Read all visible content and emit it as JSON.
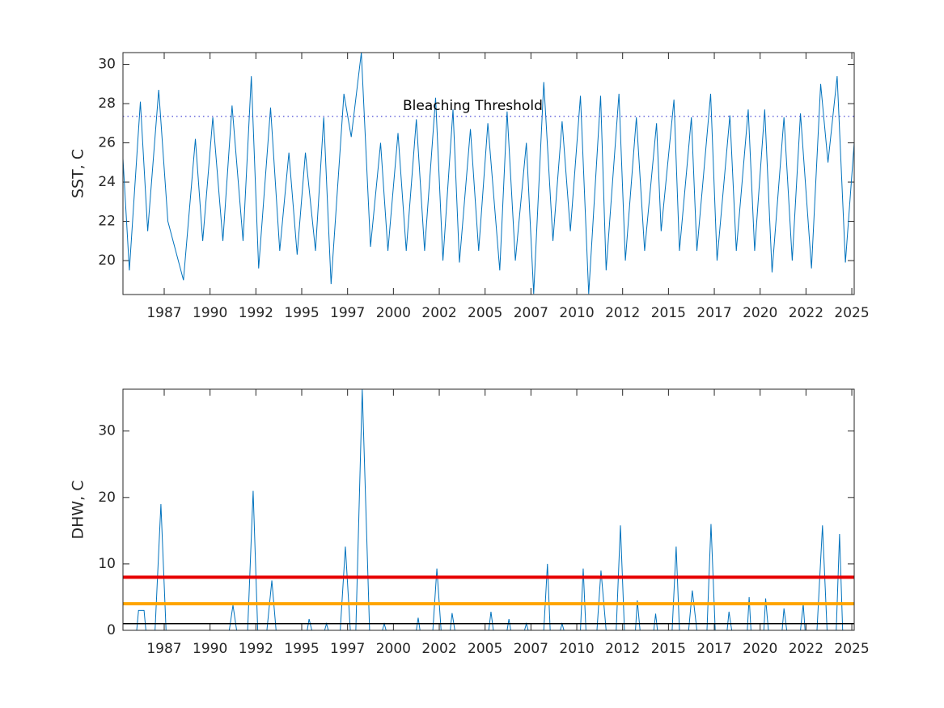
{
  "chart_data": [
    {
      "type": "line",
      "ylabel": "SST, C",
      "color": "#0072bd",
      "xlim": [
        1985.25,
        2025.13
      ],
      "ylim": [
        18.27,
        30.6
      ],
      "xticks": [
        {
          "value": 1987.5,
          "label": "1987"
        },
        1990,
        {
          "value": 1992.5,
          "label": "1992"
        },
        1995,
        {
          "value": 1997.5,
          "label": "1997"
        },
        2000,
        {
          "value": 2002.5,
          "label": "2002"
        },
        2005,
        {
          "value": 2007.5,
          "label": "2007"
        },
        2010,
        {
          "value": 2012.5,
          "label": "2012"
        },
        2015,
        {
          "value": 2017.5,
          "label": "2017"
        },
        2020,
        {
          "value": 2022.5,
          "label": "2022"
        },
        2025
      ],
      "yticks": [
        20,
        22,
        24,
        26,
        28,
        30
      ],
      "threshold": 27.35,
      "threshold_color": "#3a3ad0",
      "threshold_label": "Bleaching Threshold",
      "x": [
        1985.25,
        1985.6,
        1986.2,
        1986.6,
        1987.2,
        1987.7,
        1988.55,
        1989.2,
        1989.6,
        1990.15,
        1990.7,
        1991.2,
        1991.8,
        1992.25,
        1992.65,
        1993.3,
        1993.8,
        1994.3,
        1994.75,
        1995.2,
        1995.75,
        1996.2,
        1996.6,
        1997.3,
        1997.7,
        1998.25,
        1998.75,
        1999.3,
        1999.7,
        2000.25,
        2000.7,
        2001.25,
        2001.7,
        2002.3,
        2002.7,
        2003.25,
        2003.6,
        2004.2,
        2004.65,
        2005.15,
        2005.8,
        2006.2,
        2006.65,
        2007.25,
        2007.65,
        2008.2,
        2008.7,
        2009.2,
        2009.65,
        2010.2,
        2010.65,
        2011.3,
        2011.6,
        2012.3,
        2012.65,
        2013.25,
        2013.7,
        2014.35,
        2014.6,
        2015.3,
        2015.6,
        2016.25,
        2016.55,
        2017.3,
        2017.65,
        2018.35,
        2018.7,
        2019.35,
        2019.7,
        2020.25,
        2020.65,
        2021.3,
        2021.75,
        2022.2,
        2022.8,
        2023.3,
        2023.7,
        2024.2,
        2024.65,
        2025.13
      ],
      "values": [
        25.2,
        19.5,
        28.1,
        21.5,
        28.7,
        22,
        19,
        26.2,
        21,
        27.3,
        21,
        27.9,
        21,
        29.4,
        19.6,
        27.8,
        20.5,
        25.5,
        20.3,
        25.5,
        20.5,
        27.3,
        18.8,
        28.5,
        26.3,
        30.6,
        20.7,
        26,
        20.5,
        26.5,
        20.5,
        27.2,
        20.5,
        28.3,
        20,
        27.7,
        19.9,
        26.7,
        20.5,
        27,
        19.5,
        27.6,
        20,
        26,
        18.3,
        29.1,
        21,
        27.1,
        21.5,
        28.4,
        18.3,
        28.4,
        19.5,
        28.5,
        20,
        27.3,
        20.5,
        27,
        21.5,
        28.2,
        20.5,
        27.3,
        20.5,
        28.5,
        20,
        27.4,
        20.5,
        27.7,
        20.5,
        27.7,
        19.4,
        27.3,
        20,
        27.5,
        19.6,
        29,
        25,
        29.4,
        19.9,
        26
      ]
    },
    {
      "type": "line",
      "ylabel": "DHW, C",
      "color": "#0072bd",
      "xlim": [
        1985.25,
        2025.13
      ],
      "ylim": [
        0,
        36.3
      ],
      "xticks": [
        {
          "value": 1987.5,
          "label": "1987"
        },
        1990,
        {
          "value": 1992.5,
          "label": "1992"
        },
        1995,
        {
          "value": 1997.5,
          "label": "1997"
        },
        2000,
        {
          "value": 2002.5,
          "label": "2002"
        },
        2005,
        {
          "value": 2007.5,
          "label": "2007"
        },
        2010,
        {
          "value": 2012.5,
          "label": "2012"
        },
        2015,
        {
          "value": 2017.5,
          "label": "2017"
        },
        2020,
        {
          "value": 2022.5,
          "label": "2022"
        },
        2025
      ],
      "yticks": [
        0,
        10,
        20,
        30
      ],
      "hlines": [
        {
          "value": 8,
          "color": "#e60000"
        },
        {
          "value": 4,
          "color": "#ffa500"
        },
        {
          "value": 1,
          "color": "#000000"
        }
      ],
      "x": [
        1985.25,
        1986.0,
        1986.1,
        1986.4,
        1986.5,
        1987.0,
        1987.32,
        1987.6,
        1991.05,
        1991.25,
        1991.45,
        1992.05,
        1992.35,
        1992.6,
        1993.1,
        1993.37,
        1993.6,
        1995.3,
        1995.4,
        1995.55,
        1996.25,
        1996.35,
        1996.45,
        1997.1,
        1997.38,
        1997.65,
        1997.95,
        1998.3,
        1998.7,
        1999.4,
        1999.5,
        1999.6,
        2001.25,
        2001.35,
        2001.45,
        2002.15,
        2002.37,
        2002.6,
        2003.1,
        2003.2,
        2003.35,
        2005.2,
        2005.32,
        2005.45,
        2006.2,
        2006.3,
        2006.4,
        2007.15,
        2007.25,
        2007.35,
        2008.2,
        2008.4,
        2008.55,
        2009.1,
        2009.2,
        2009.3,
        2010.2,
        2010.35,
        2010.5,
        2011.1,
        2011.32,
        2011.6,
        2012.15,
        2012.38,
        2012.6,
        2013.2,
        2013.3,
        2013.45,
        2014.2,
        2014.3,
        2014.4,
        2015.2,
        2015.42,
        2015.6,
        2016.1,
        2016.3,
        2016.55,
        2017.1,
        2017.32,
        2017.55,
        2018.2,
        2018.3,
        2018.45,
        2019.3,
        2019.4,
        2019.5,
        2020.2,
        2020.3,
        2020.45,
        2021.2,
        2021.3,
        2021.45,
        2022.2,
        2022.35,
        2022.45,
        2023.1,
        2023.4,
        2023.65,
        2024.15,
        2024.33,
        2024.5,
        2025.13
      ],
      "values": [
        0,
        0,
        3,
        3,
        0,
        0,
        19,
        0,
        0,
        3.8,
        0,
        0,
        21,
        0,
        0,
        7.5,
        0,
        0,
        1.7,
        0,
        0,
        1,
        0,
        0,
        12.6,
        0,
        0,
        36.3,
        0,
        0,
        1,
        0,
        0,
        1.9,
        0,
        0,
        9.3,
        0,
        0,
        2.6,
        0,
        0,
        2.8,
        0,
        0,
        1.7,
        0,
        0,
        1,
        0,
        0,
        10,
        0,
        0,
        1,
        0,
        0,
        9.3,
        0,
        0,
        9,
        0,
        0,
        15.8,
        0,
        0,
        4.5,
        0,
        0,
        2.5,
        0,
        0,
        12.6,
        0,
        0,
        6,
        0,
        0,
        16,
        0,
        0,
        2.8,
        0,
        0,
        5,
        0,
        0,
        4.8,
        0,
        0,
        3.3,
        0,
        0,
        4,
        0,
        0,
        15.8,
        0,
        0,
        14.5,
        0,
        0
      ]
    }
  ]
}
